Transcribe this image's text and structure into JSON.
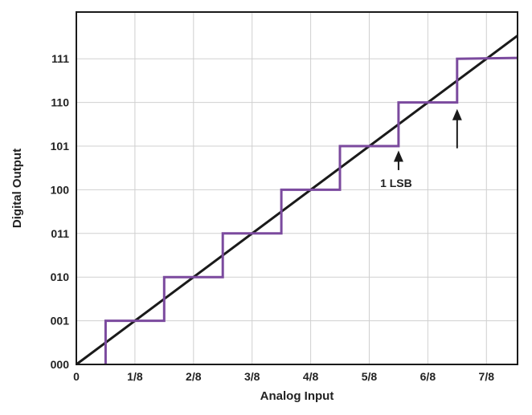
{
  "chart_data": {
    "type": "line",
    "xlabel": "Analog Input",
    "ylabel": "Digital Output",
    "x_ticks": [
      {
        "value": 0,
        "label": "0"
      },
      {
        "value": 0.125,
        "label": "1/8"
      },
      {
        "value": 0.25,
        "label": "2/8"
      },
      {
        "value": 0.375,
        "label": "3/8"
      },
      {
        "value": 0.5,
        "label": "4/8"
      },
      {
        "value": 0.625,
        "label": "5/8"
      },
      {
        "value": 0.75,
        "label": "6/8"
      },
      {
        "value": 0.875,
        "label": "7/8"
      }
    ],
    "y_ticks": [
      {
        "value": 0,
        "label": "000"
      },
      {
        "value": 1,
        "label": "001"
      },
      {
        "value": 2,
        "label": "010"
      },
      {
        "value": 3,
        "label": "011"
      },
      {
        "value": 4,
        "label": "100"
      },
      {
        "value": 5,
        "label": "101"
      },
      {
        "value": 6,
        "label": "110"
      },
      {
        "value": 7,
        "label": "111"
      }
    ],
    "xlim": [
      0,
      0.9414
    ],
    "ylim": [
      0,
      8.07
    ],
    "grid": true,
    "series": [
      {
        "kind": "ideal-line",
        "color": "#1a1a1a",
        "x": [
          0,
          0.9414
        ],
        "y": [
          0,
          7.53
        ]
      },
      {
        "kind": "staircase",
        "color": "#7b4a9e",
        "x": [
          0.0625,
          0.0625,
          0.1875,
          0.1875,
          0.3125,
          0.3125,
          0.4375,
          0.4375,
          0.5625,
          0.5625,
          0.6875,
          0.6875,
          0.8125,
          0.8125,
          0.9414
        ],
        "y": [
          0,
          1,
          1,
          2,
          2,
          3,
          3,
          4,
          4,
          5,
          5,
          6,
          6,
          7,
          7.02
        ]
      }
    ],
    "annotations": [
      {
        "text": "1 LSB",
        "x": 0.6875,
        "y": 4.15
      },
      {
        "arrow": "up",
        "x": 0.6875,
        "y_from": 4.45,
        "y_to": 4.9
      },
      {
        "arrow": "up",
        "x": 0.8125,
        "y_from": 4.95,
        "y_to": 5.85
      }
    ]
  }
}
